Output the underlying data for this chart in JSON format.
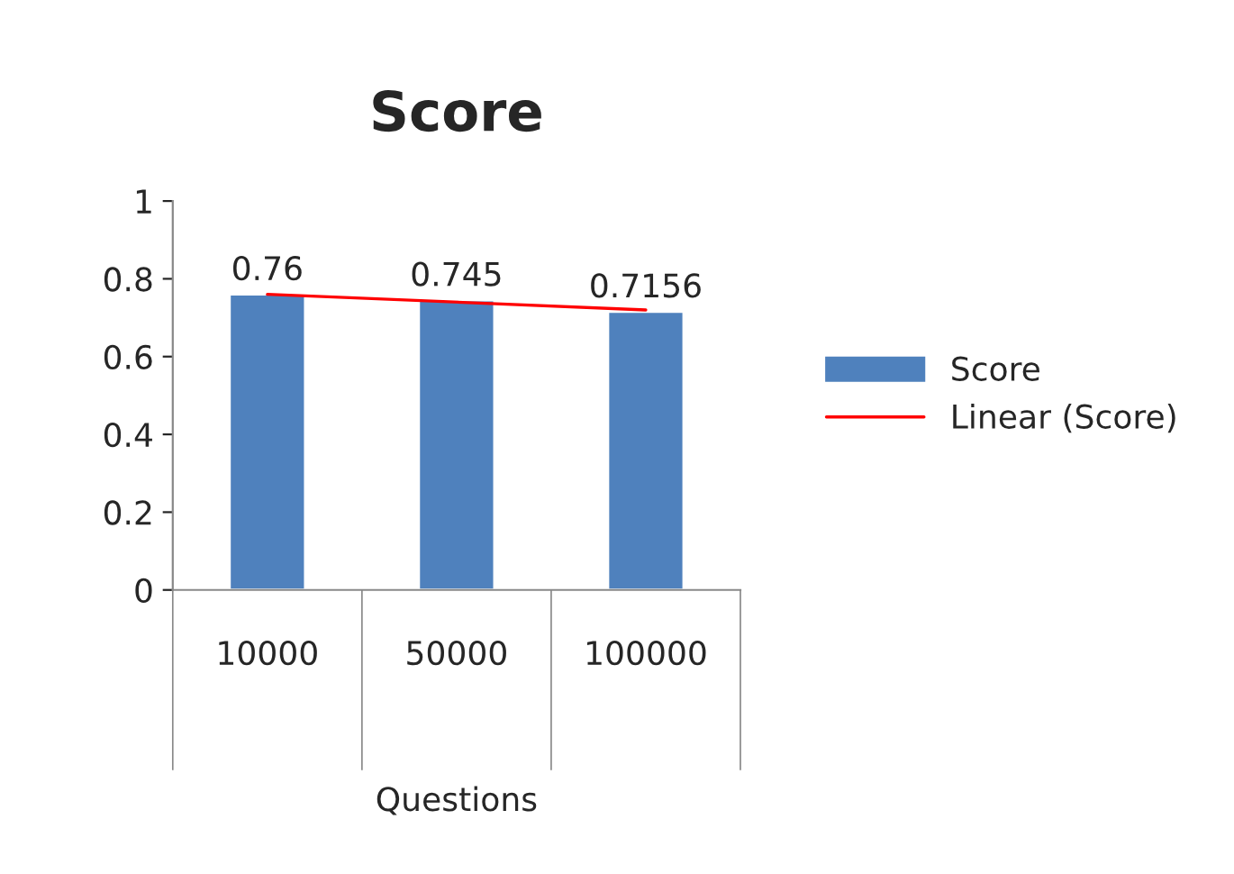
{
  "chart_data": {
    "type": "bar",
    "title": "Score",
    "xlabel": "Questions",
    "categories": [
      "10000",
      "50000",
      "100000"
    ],
    "series": [
      {
        "name": "Score",
        "color": "#4f81bd",
        "values": [
          0.76,
          0.745,
          0.7156
        ],
        "value_labels": [
          "0.76",
          "0.745",
          "0.7156"
        ]
      },
      {
        "name": "Linear (Score)",
        "type": "line",
        "color": "#ff0000",
        "x": [
          "10000",
          "100000"
        ],
        "values": [
          0.76,
          0.72
        ]
      }
    ],
    "ylim": [
      0,
      1
    ],
    "yticks": [
      0,
      0.2,
      0.4,
      0.6,
      0.8,
      1
    ],
    "grid": false,
    "legend": "right"
  }
}
